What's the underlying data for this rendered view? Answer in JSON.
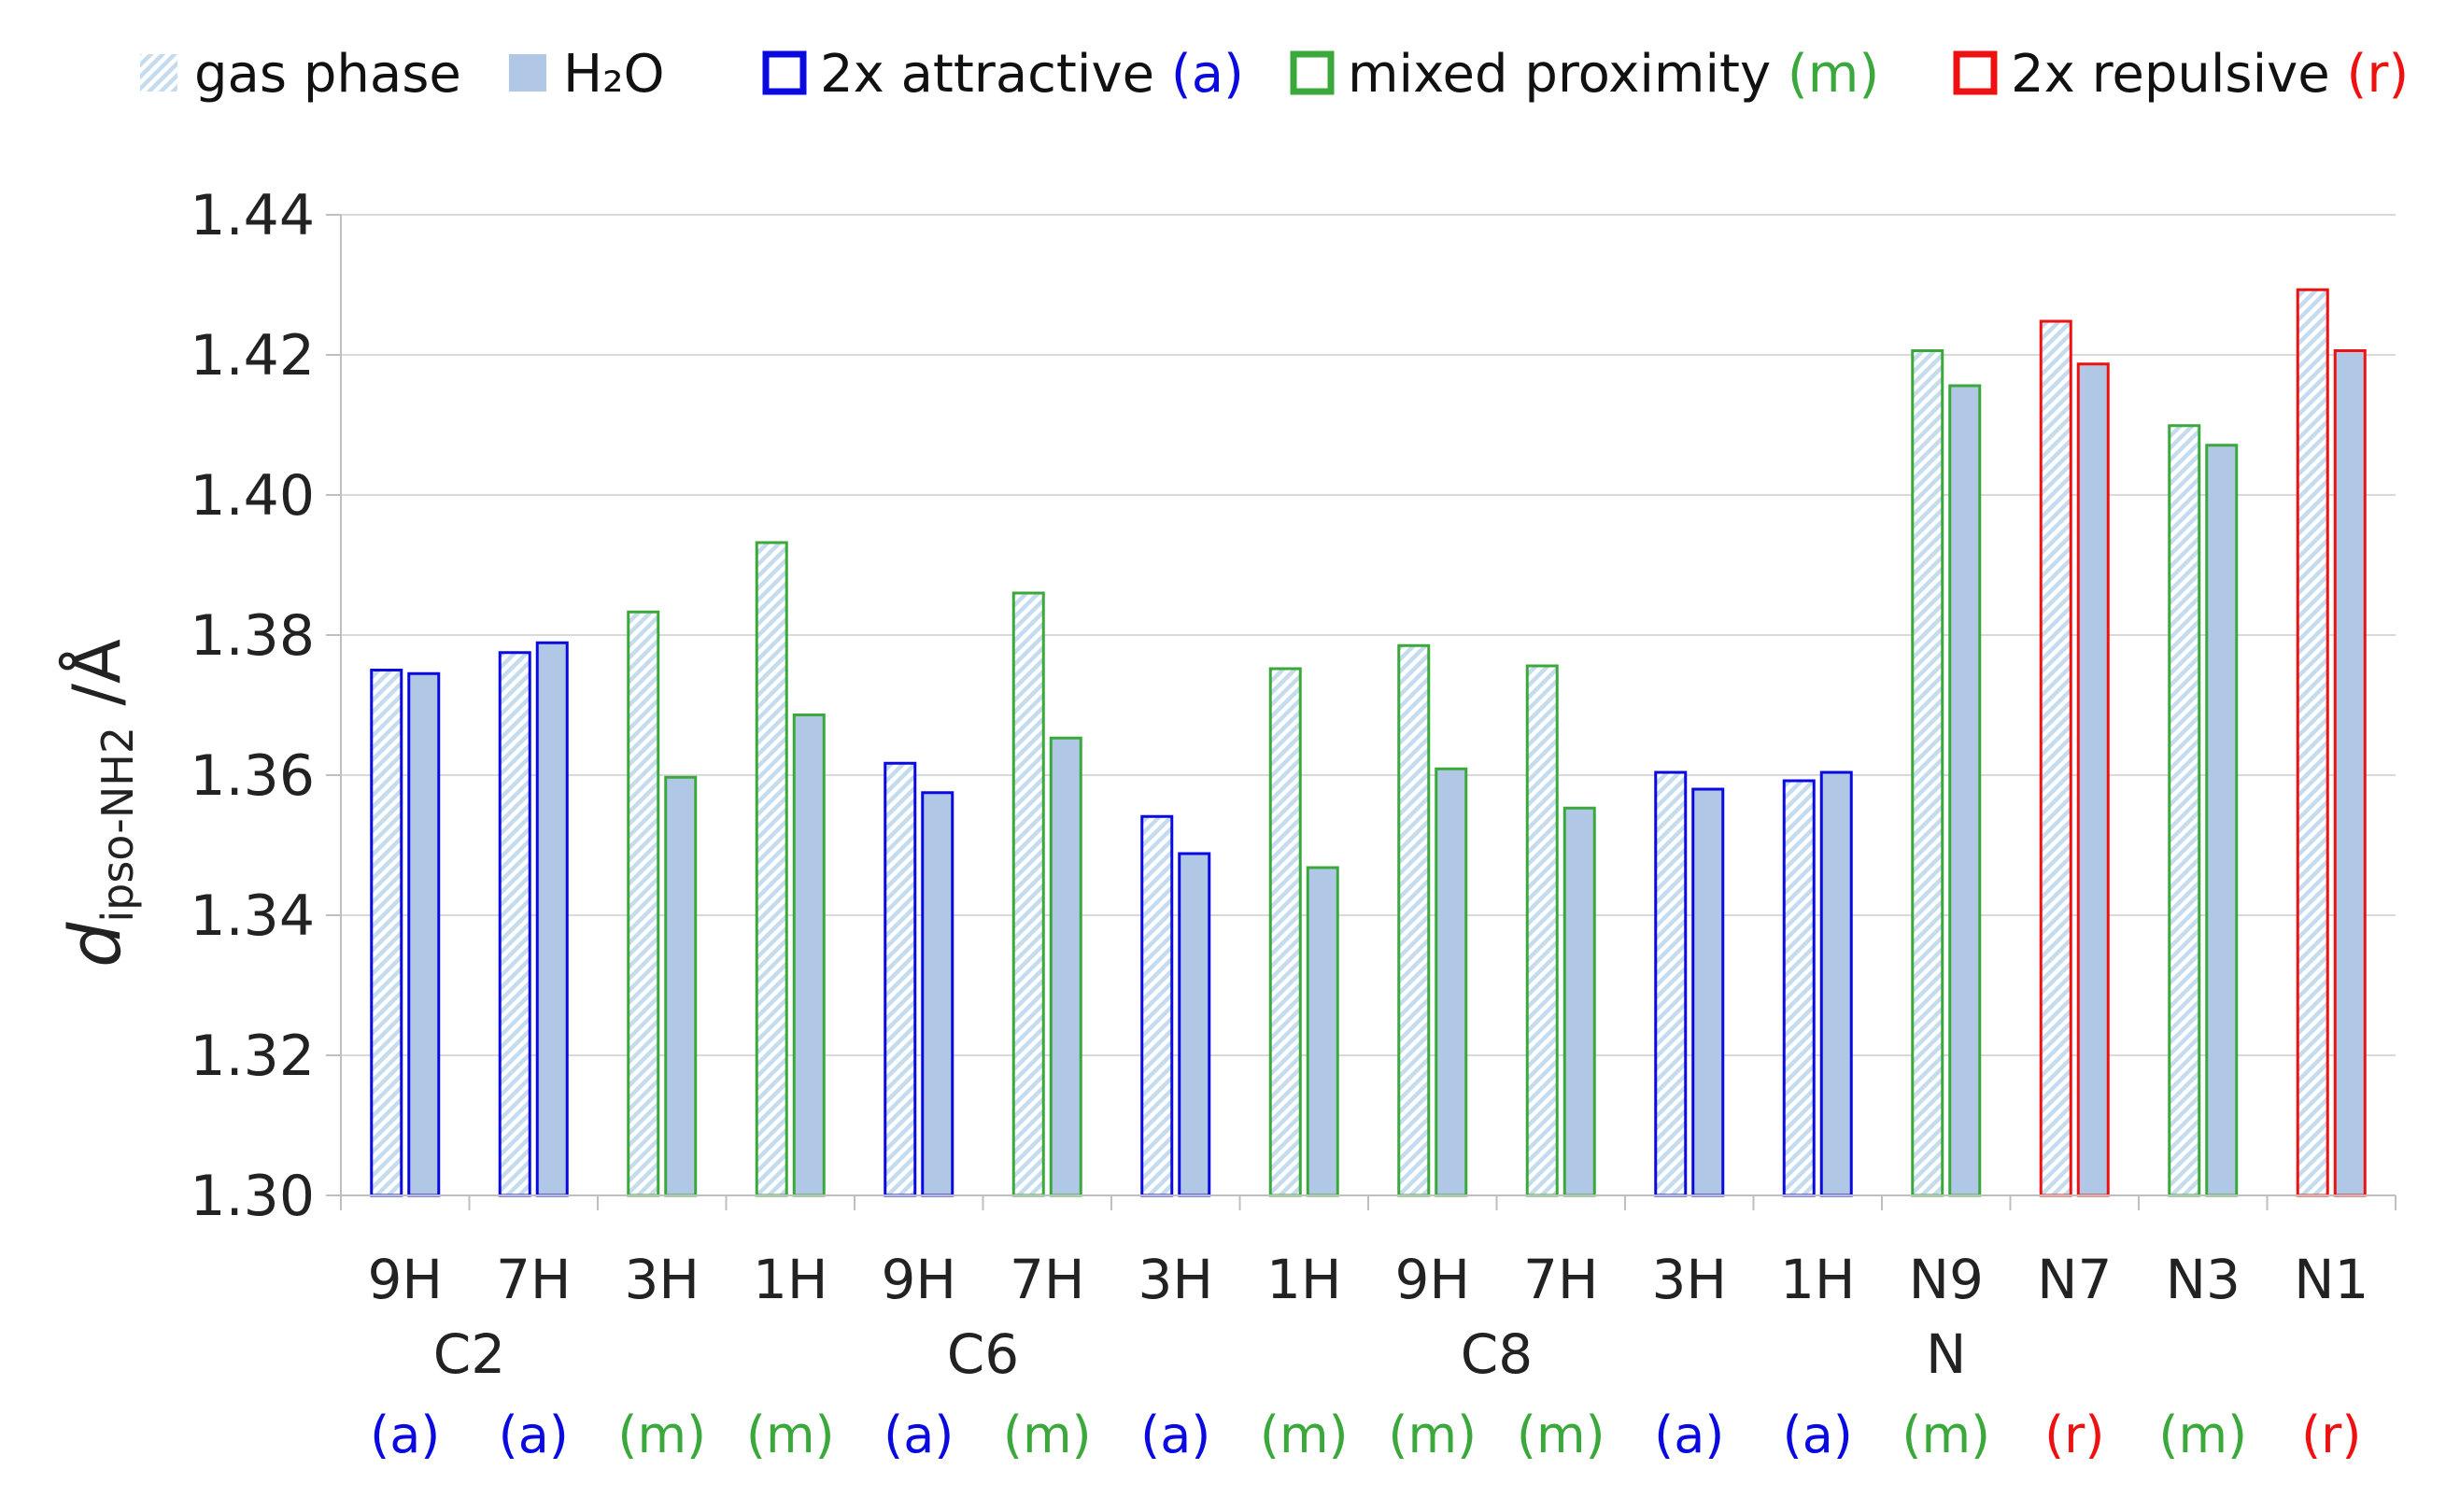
{
  "chart_data": {
    "type": "bar",
    "ylabel_main": "d",
    "ylabel_sub": "ipso-NH2",
    "ylabel_unit": " /Å",
    "ylim": [
      1.3,
      1.44
    ],
    "yticks": [
      1.3,
      1.32,
      1.34,
      1.36,
      1.38,
      1.4,
      1.42,
      1.44
    ],
    "ytick_labels": [
      "1.30",
      "1.32",
      "1.34",
      "1.36",
      "1.38",
      "1.40",
      "1.42",
      "1.44"
    ],
    "grid": true,
    "legend_position": "top",
    "legend": [
      {
        "key": "gas",
        "label": "gas phase",
        "tag": ""
      },
      {
        "key": "water",
        "label": "H₂O",
        "tag": ""
      },
      {
        "key": "a",
        "label": "2x attractive ",
        "tag": "(a)"
      },
      {
        "key": "m",
        "label": "mixed proximity ",
        "tag": "(m)"
      },
      {
        "key": "r",
        "label": "2x repulsive ",
        "tag": "(r)"
      }
    ],
    "category_colors": {
      "a": "#0a0ae0",
      "m": "#3aa83a",
      "r": "#ee1111"
    },
    "fill_colors": {
      "gas_stripe": "#c5dcef",
      "water": "#b0c8e6"
    },
    "categories": [
      "9H",
      "7H",
      "3H",
      "1H",
      "9H",
      "7H",
      "3H",
      "1H",
      "9H",
      "7H",
      "3H",
      "1H",
      "N9",
      "N7",
      "N3",
      "N1"
    ],
    "groups": [
      {
        "label": "C2",
        "start": 0,
        "end": 1
      },
      {
        "label": "C6",
        "start": 2,
        "end": 7
      },
      {
        "label": "C8",
        "start": 8,
        "end": 9
      },
      {
        "label": "N",
        "start": 12,
        "end": 12
      }
    ],
    "proximity": [
      "a",
      "a",
      "m",
      "m",
      "a",
      "m",
      "a",
      "m",
      "m",
      "m",
      "a",
      "a",
      "m",
      "r",
      "m",
      "r"
    ],
    "proximity_labels": [
      "(a)",
      "(a)",
      "(m)",
      "(m)",
      "(a)",
      "(m)",
      "(a)",
      "(m)",
      "(m)",
      "(m)",
      "(a)",
      "(a)",
      "(m)",
      "(r)",
      "(m)",
      "(r)"
    ],
    "series": [
      {
        "name": "gas phase",
        "values": [
          1.375,
          1.3775,
          1.3833,
          1.3932,
          1.3617,
          1.386,
          1.3541,
          1.3752,
          1.3785,
          1.3756,
          1.3604,
          1.3592,
          1.4206,
          1.4248,
          1.4099,
          1.4293
        ]
      },
      {
        "name": "H₂O",
        "values": [
          1.3745,
          1.3789,
          1.3597,
          1.3686,
          1.3575,
          1.3653,
          1.3488,
          1.3468,
          1.3609,
          1.3553,
          1.358,
          1.3604,
          1.4156,
          1.4187,
          1.4071,
          1.4206
        ]
      }
    ]
  }
}
